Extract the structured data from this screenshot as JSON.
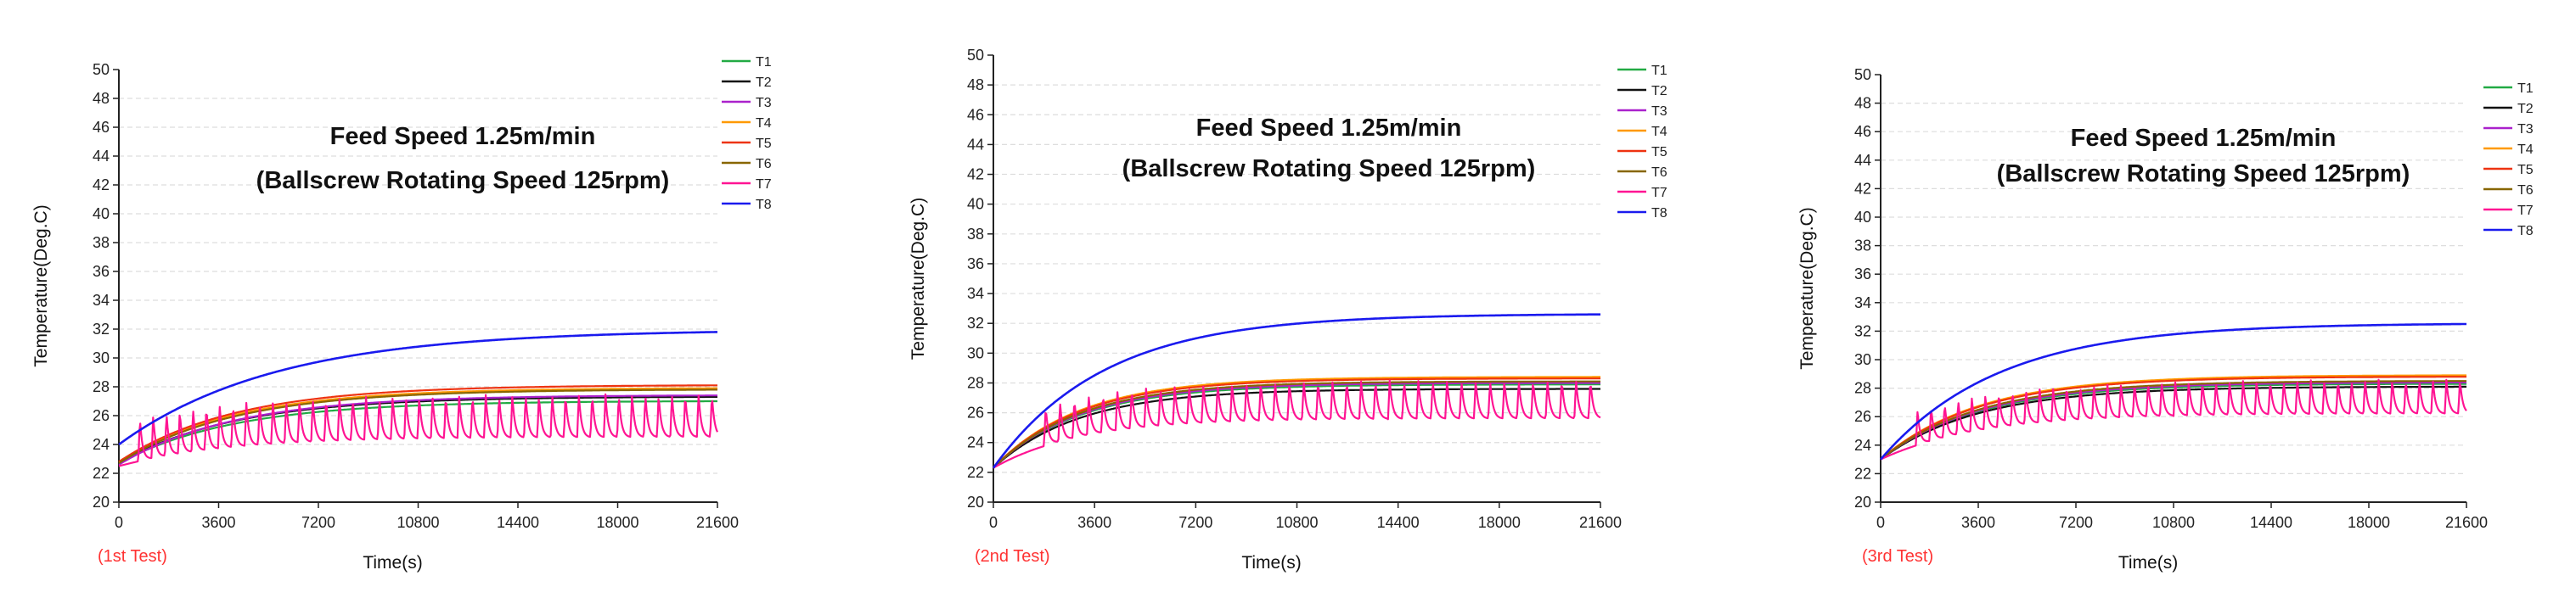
{
  "chart_data": [
    {
      "type": "line",
      "title": "Feed Speed 1.25m/min",
      "subtitle": "(Ballscrew Rotating Speed 125rpm)",
      "xlabel": "Time(s)",
      "ylabel": "Temperature(Deg.C)",
      "test_label": "(1st Test)",
      "test_label_color": "#ff3333",
      "xlim": [
        0,
        21600
      ],
      "ylim": [
        20,
        50
      ],
      "x_ticks": [
        "0",
        "3600",
        "7200",
        "10800",
        "14400",
        "18000",
        "21600"
      ],
      "y_ticks": [
        "20",
        "22",
        "24",
        "26",
        "28",
        "30",
        "32",
        "34",
        "36",
        "38",
        "40",
        "42",
        "44",
        "46",
        "48",
        "50"
      ],
      "grid": true,
      "legend": "top-right",
      "series": [
        {
          "name": "T1",
          "color": "#22aa44",
          "start": 22.7,
          "end": 27.0,
          "k": 0.52
        },
        {
          "name": "T2",
          "color": "#111111",
          "start": 22.7,
          "end": 27.3,
          "k": 0.52
        },
        {
          "name": "T3",
          "color": "#aa22cc",
          "start": 22.6,
          "end": 27.4,
          "k": 0.52
        },
        {
          "name": "T4",
          "color": "#ff9900",
          "start": 22.8,
          "end": 27.9,
          "k": 0.52
        },
        {
          "name": "T5",
          "color": "#ee3311",
          "start": 22.8,
          "end": 28.1,
          "k": 0.52
        },
        {
          "name": "T6",
          "color": "#886600",
          "start": 22.7,
          "end": 27.8,
          "k": 0.52
        },
        {
          "name": "T7",
          "color": "#ff1493",
          "start": 22.5,
          "end": 24.5,
          "k": 0.55,
          "oscillating": true,
          "amp": 3.0,
          "period": 480,
          "osc_start": 700
        },
        {
          "name": "T8",
          "color": "#1a1aee",
          "start": 24.0,
          "end": 31.8,
          "k": 0.38
        }
      ]
    },
    {
      "type": "line",
      "title": "Feed Speed 1.25m/min",
      "subtitle": "(Ballscrew Rotating Speed 125rpm)",
      "xlabel": "Time(s)",
      "ylabel": "Temperature(Deg.C)",
      "test_label": "(2nd Test)",
      "test_label_color": "#ff3333",
      "xlim": [
        0,
        21600
      ],
      "ylim": [
        20,
        50
      ],
      "x_ticks": [
        "0",
        "3600",
        "7200",
        "10800",
        "14400",
        "18000",
        "21600"
      ],
      "y_ticks": [
        "20",
        "22",
        "24",
        "26",
        "28",
        "30",
        "32",
        "34",
        "36",
        "38",
        "40",
        "42",
        "44",
        "46",
        "48",
        "50"
      ],
      "grid": true,
      "legend": "top-right",
      "series": [
        {
          "name": "T1",
          "color": "#22aa44",
          "start": 22.3,
          "end": 27.9,
          "k": 0.7
        },
        {
          "name": "T2",
          "color": "#111111",
          "start": 22.3,
          "end": 27.6,
          "k": 0.7
        },
        {
          "name": "T3",
          "color": "#aa22cc",
          "start": 22.3,
          "end": 28.0,
          "k": 0.7
        },
        {
          "name": "T4",
          "color": "#ff9900",
          "start": 22.3,
          "end": 28.4,
          "k": 0.7
        },
        {
          "name": "T5",
          "color": "#ee3311",
          "start": 22.3,
          "end": 28.3,
          "k": 0.7
        },
        {
          "name": "T6",
          "color": "#886600",
          "start": 22.3,
          "end": 28.1,
          "k": 0.7
        },
        {
          "name": "T7",
          "color": "#ff1493",
          "start": 22.3,
          "end": 25.6,
          "k": 0.7,
          "oscillating": true,
          "amp": 2.6,
          "period": 510,
          "osc_start": 1800
        },
        {
          "name": "T8",
          "color": "#1a1aee",
          "start": 22.3,
          "end": 32.6,
          "k": 0.55
        }
      ]
    },
    {
      "type": "line",
      "title": "Feed Speed 1.25m/min",
      "subtitle": "(Ballscrew Rotating Speed 125rpm)",
      "xlabel": "Time(s)",
      "ylabel": "Temperature(Deg.C)",
      "test_label": "(3rd Test)",
      "test_label_color": "#ff3333",
      "xlim": [
        0,
        21600
      ],
      "ylim": [
        20,
        50
      ],
      "x_ticks": [
        "0",
        "3600",
        "7200",
        "10800",
        "14400",
        "18000",
        "21600"
      ],
      "y_ticks": [
        "20",
        "22",
        "24",
        "26",
        "28",
        "30",
        "32",
        "34",
        "36",
        "38",
        "40",
        "42",
        "44",
        "46",
        "48",
        "50"
      ],
      "grid": true,
      "legend": "top-right",
      "series": [
        {
          "name": "T1",
          "color": "#22aa44",
          "start": 23.0,
          "end": 28.3,
          "k": 0.6
        },
        {
          "name": "T2",
          "color": "#111111",
          "start": 23.0,
          "end": 28.1,
          "k": 0.6
        },
        {
          "name": "T3",
          "color": "#aa22cc",
          "start": 23.0,
          "end": 28.4,
          "k": 0.6
        },
        {
          "name": "T4",
          "color": "#ff9900",
          "start": 23.0,
          "end": 28.9,
          "k": 0.6
        },
        {
          "name": "T5",
          "color": "#ee3311",
          "start": 23.0,
          "end": 28.8,
          "k": 0.6
        },
        {
          "name": "T6",
          "color": "#886600",
          "start": 23.0,
          "end": 28.5,
          "k": 0.6
        },
        {
          "name": "T7",
          "color": "#ff1493",
          "start": 23.0,
          "end": 26.2,
          "k": 0.6,
          "oscillating": true,
          "amp": 2.4,
          "period": 500,
          "osc_start": 1300
        },
        {
          "name": "T8",
          "color": "#1a1aee",
          "start": 23.0,
          "end": 32.5,
          "k": 0.5
        }
      ]
    }
  ]
}
